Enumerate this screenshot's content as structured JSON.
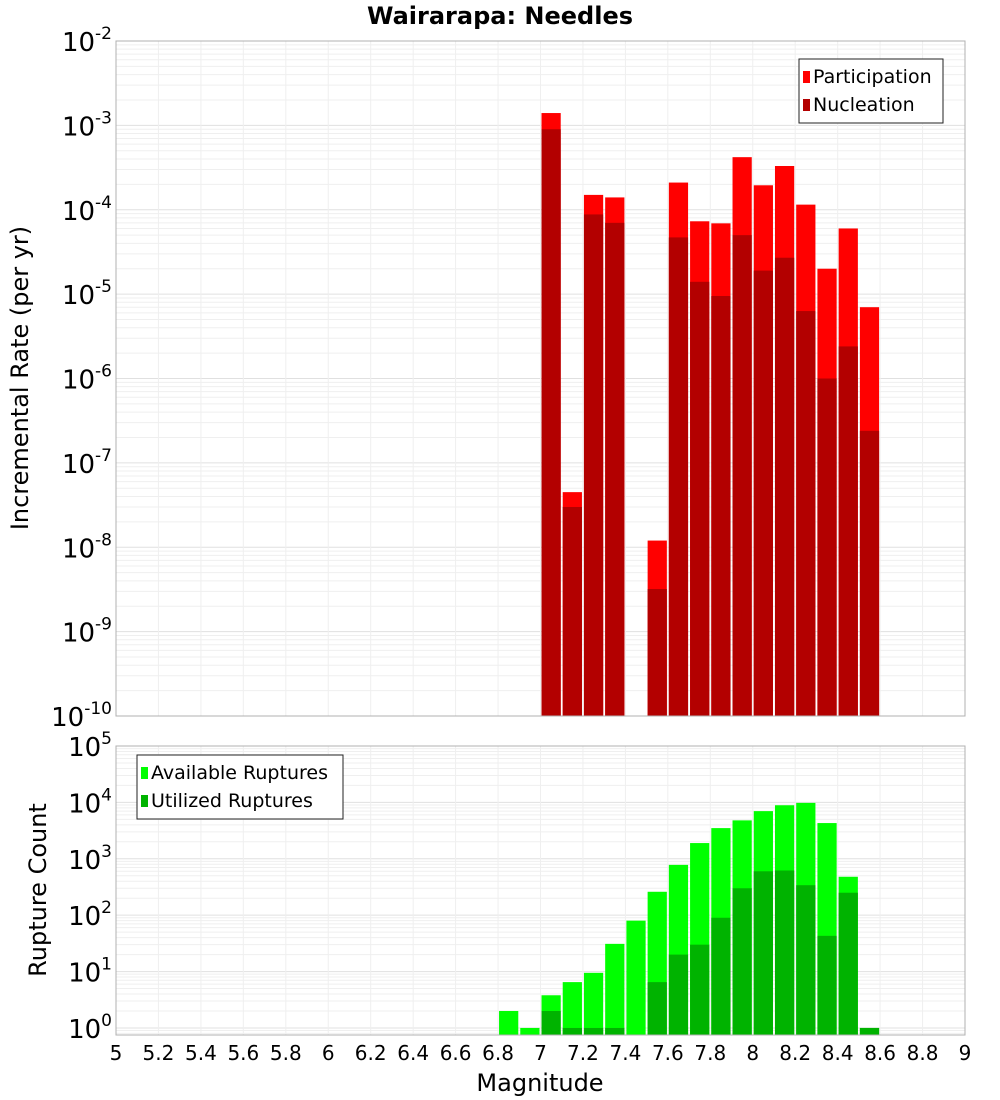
{
  "chart_data": [
    {
      "type": "bar",
      "title": "Wairarapa: Needles",
      "xlabel": "",
      "ylabel": "Incremental Rate (per yr)",
      "yscale": "log",
      "ylim": [
        1e-10,
        0.01
      ],
      "xlim": [
        5,
        9
      ],
      "grid": true,
      "legend_position": "top-right",
      "overlay": true,
      "x": [
        7.05,
        7.15,
        7.25,
        7.35,
        7.55,
        7.65,
        7.75,
        7.85,
        7.95,
        8.05,
        8.15,
        8.25,
        8.35,
        8.45,
        8.55
      ],
      "series": [
        {
          "name": "Participation",
          "color": "#ff0000",
          "values": [
            0.0014,
            4.5e-08,
            0.00015,
            0.00014,
            1.2e-08,
            0.00021,
            7.3e-05,
            6.9e-05,
            0.00042,
            0.000195,
            0.00033,
            0.000115,
            2e-05,
            6e-05,
            7e-06
          ]
        },
        {
          "name": "Nucleation",
          "color": "#b30000",
          "values": [
            0.0009,
            3e-08,
            8.8e-05,
            7e-05,
            3.2e-09,
            4.7e-05,
            1.4e-05,
            9.5e-06,
            5e-05,
            1.9e-05,
            2.7e-05,
            6.3e-06,
            1e-06,
            2.4e-06,
            2.4e-07
          ]
        }
      ],
      "yticks": [
        {
          "base": "10",
          "exp": "-2",
          "value": 0.01
        },
        {
          "base": "10",
          "exp": "-3",
          "value": 0.001
        },
        {
          "base": "10",
          "exp": "-4",
          "value": 0.0001
        },
        {
          "base": "10",
          "exp": "-5",
          "value": 1e-05
        },
        {
          "base": "10",
          "exp": "-6",
          "value": 1e-06
        },
        {
          "base": "10",
          "exp": "-7",
          "value": 1e-07
        },
        {
          "base": "10",
          "exp": "-8",
          "value": 1e-08
        },
        {
          "base": "10",
          "exp": "-9",
          "value": 1e-09
        },
        {
          "base": "10",
          "exp": "-10",
          "value": 1e-10
        }
      ]
    },
    {
      "type": "bar",
      "title": "",
      "xlabel": "Magnitude",
      "ylabel": "Rupture Count",
      "yscale": "log",
      "ylim": [
        0.75,
        100000.0
      ],
      "xlim": [
        5,
        9
      ],
      "grid": true,
      "legend_position": "top-left",
      "overlay": true,
      "x": [
        6.85,
        6.95,
        7.05,
        7.15,
        7.25,
        7.35,
        7.45,
        7.55,
        7.65,
        7.75,
        7.85,
        7.95,
        8.05,
        8.15,
        8.25,
        8.35,
        8.45,
        8.55
      ],
      "series": [
        {
          "name": "Available Ruptures",
          "color": "#00ff00",
          "values": [
            2,
            1,
            3.8,
            6.5,
            9.5,
            31,
            80,
            260,
            780,
            1900,
            3500,
            4800,
            7000,
            8900,
            9800,
            4300,
            480,
            1
          ]
        },
        {
          "name": "Utilized Ruptures",
          "color": "#00b300",
          "values": [
            0,
            0,
            2,
            1,
            1,
            1,
            0,
            6.5,
            20,
            30,
            90,
            300,
            600,
            620,
            340,
            43,
            250,
            1
          ]
        }
      ],
      "yticks": [
        {
          "base": "10",
          "exp": "5",
          "value": 100000.0
        },
        {
          "base": "10",
          "exp": "4",
          "value": 10000.0
        },
        {
          "base": "10",
          "exp": "3",
          "value": 1000.0
        },
        {
          "base": "10",
          "exp": "2",
          "value": 100.0
        },
        {
          "base": "10",
          "exp": "1",
          "value": 10.0
        },
        {
          "base": "10",
          "exp": "0",
          "value": 1
        }
      ],
      "xticks": [
        "5",
        "5.2",
        "5.4",
        "5.6",
        "5.8",
        "6",
        "6.2",
        "6.4",
        "6.6",
        "6.8",
        "7",
        "7.2",
        "7.4",
        "7.6",
        "7.8",
        "8",
        "8.2",
        "8.4",
        "8.6",
        "8.8",
        "9"
      ]
    }
  ]
}
